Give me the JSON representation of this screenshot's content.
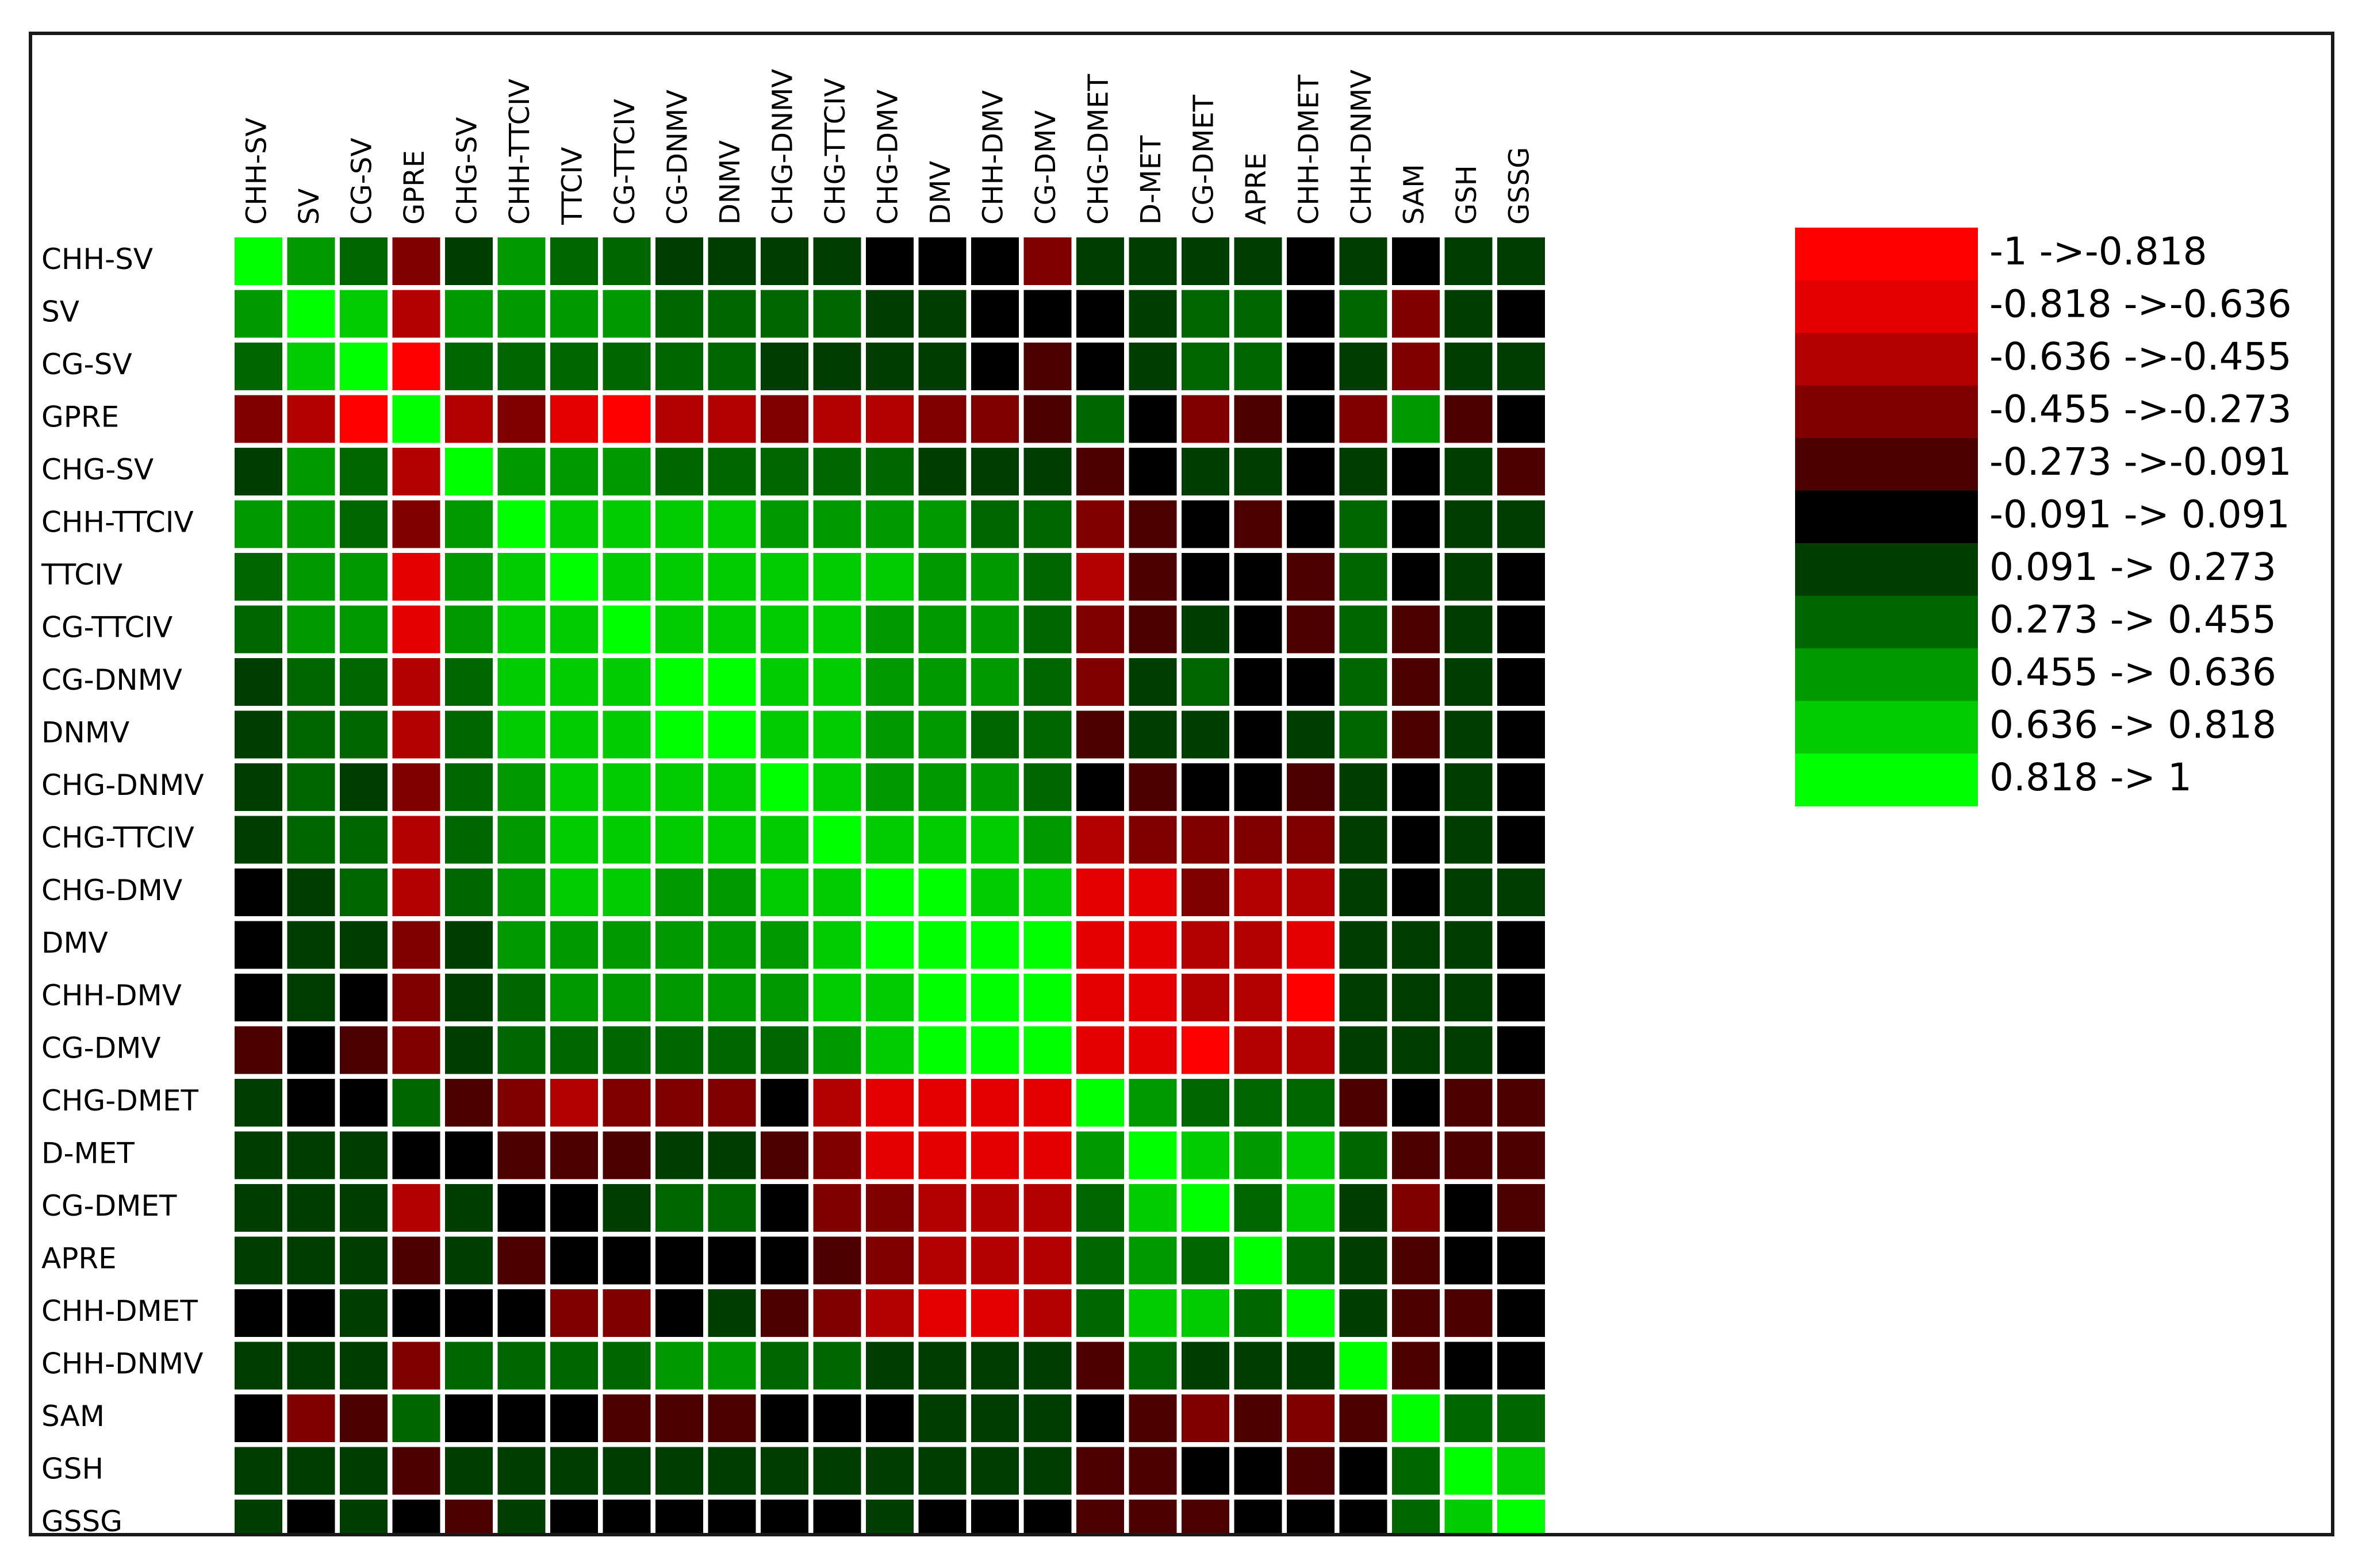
{
  "chart_data": {
    "type": "heatmap",
    "row_labels": [
      "CHH-SV",
      "SV",
      "CG-SV",
      "GPRE",
      "CHG-SV",
      "CHH-TTCIV",
      "TTCIV",
      "CG-TTCIV",
      "CG-DNMV",
      "DNMV",
      "CHG-DNMV",
      "CHG-TTCIV",
      "CHG-DMV",
      "DMV",
      "CHH-DMV",
      "CG-DMV",
      "CHG-DMET",
      "D-MET",
      "CG-DMET",
      "APRE",
      "CHH-DMET",
      "CHH-DNMV",
      "SAM",
      "GSH",
      "GSSG"
    ],
    "col_labels": [
      "CHH-SV",
      "SV",
      "CG-SV",
      "GPRE",
      "CHG-SV",
      "CHH-TTCIV",
      "TTCIV",
      "CG-TTCIV",
      "CG-DNMV",
      "DNMV",
      "CHG-DNMV",
      "CHG-TTCIV",
      "CHG-DMV",
      "DMV",
      "CHH-DMV",
      "CG-DMV",
      "CHG-DMET",
      "D-MET",
      "CG-DMET",
      "APRE",
      "CHH-DMET",
      "CHH-DNMV",
      "SAM",
      "GSH",
      "GSSG"
    ],
    "values": [
      [
        10,
        8,
        7,
        3,
        6,
        8,
        7,
        7,
        6,
        6,
        6,
        6,
        5,
        5,
        5,
        3,
        6,
        6,
        6,
        6,
        5,
        6,
        5,
        6,
        6
      ],
      [
        8,
        10,
        9,
        2,
        8,
        8,
        8,
        8,
        7,
        7,
        7,
        7,
        6,
        6,
        5,
        5,
        5,
        6,
        7,
        7,
        5,
        7,
        3,
        6,
        5
      ],
      [
        7,
        9,
        10,
        0,
        7,
        7,
        7,
        7,
        7,
        7,
        6,
        6,
        6,
        6,
        5,
        4,
        5,
        6,
        7,
        7,
        5,
        6,
        3,
        6,
        6
      ],
      [
        3,
        2,
        0,
        10,
        2,
        3,
        1,
        0,
        2,
        2,
        3,
        2,
        2,
        3,
        3,
        4,
        7,
        5,
        3,
        4,
        5,
        3,
        8,
        4,
        5
      ],
      [
        6,
        8,
        7,
        2,
        10,
        8,
        8,
        8,
        7,
        7,
        7,
        7,
        7,
        6,
        6,
        6,
        4,
        5,
        6,
        6,
        5,
        6,
        5,
        6,
        4
      ],
      [
        8,
        8,
        7,
        3,
        8,
        10,
        9,
        9,
        9,
        9,
        8,
        8,
        8,
        8,
        7,
        7,
        3,
        4,
        5,
        4,
        5,
        7,
        5,
        6,
        6
      ],
      [
        7,
        8,
        8,
        1,
        8,
        9,
        10,
        9,
        9,
        9,
        9,
        9,
        9,
        8,
        8,
        7,
        2,
        4,
        5,
        5,
        4,
        7,
        5,
        6,
        5
      ],
      [
        7,
        8,
        8,
        1,
        8,
        9,
        9,
        10,
        9,
        9,
        9,
        9,
        8,
        8,
        8,
        7,
        3,
        4,
        6,
        5,
        4,
        7,
        4,
        6,
        5
      ],
      [
        6,
        7,
        7,
        2,
        7,
        9,
        9,
        9,
        10,
        10,
        9,
        9,
        8,
        8,
        8,
        7,
        3,
        6,
        7,
        5,
        5,
        7,
        4,
        6,
        5
      ],
      [
        6,
        7,
        7,
        2,
        7,
        9,
        9,
        9,
        10,
        10,
        9,
        9,
        8,
        8,
        7,
        7,
        4,
        6,
        6,
        5,
        6,
        7,
        4,
        6,
        5
      ],
      [
        6,
        7,
        6,
        3,
        7,
        8,
        9,
        9,
        9,
        9,
        10,
        9,
        8,
        8,
        8,
        7,
        5,
        4,
        5,
        5,
        4,
        6,
        5,
        6,
        5
      ],
      [
        6,
        7,
        7,
        2,
        7,
        8,
        9,
        9,
        9,
        9,
        9,
        10,
        9,
        9,
        9,
        8,
        2,
        3,
        3,
        3,
        3,
        6,
        5,
        6,
        5
      ],
      [
        5,
        6,
        7,
        2,
        7,
        8,
        9,
        9,
        8,
        8,
        9,
        9,
        10,
        10,
        9,
        9,
        1,
        1,
        3,
        2,
        2,
        6,
        5,
        6,
        6
      ],
      [
        5,
        6,
        6,
        3,
        6,
        8,
        8,
        8,
        8,
        8,
        8,
        9,
        10,
        10,
        10,
        10,
        1,
        1,
        2,
        2,
        1,
        6,
        6,
        6,
        5
      ],
      [
        5,
        6,
        5,
        3,
        6,
        7,
        8,
        8,
        8,
        8,
        8,
        9,
        9,
        10,
        10,
        10,
        1,
        1,
        2,
        2,
        0,
        6,
        6,
        6,
        5
      ],
      [
        4,
        5,
        4,
        3,
        6,
        7,
        7,
        7,
        7,
        7,
        7,
        8,
        9,
        10,
        10,
        10,
        1,
        1,
        0,
        2,
        2,
        6,
        6,
        6,
        5
      ],
      [
        6,
        5,
        5,
        7,
        4,
        3,
        2,
        3,
        3,
        3,
        5,
        2,
        1,
        1,
        1,
        1,
        10,
        8,
        7,
        7,
        7,
        4,
        5,
        4,
        4
      ],
      [
        6,
        6,
        6,
        5,
        5,
        4,
        4,
        4,
        6,
        6,
        4,
        3,
        1,
        1,
        1,
        1,
        8,
        10,
        9,
        8,
        9,
        7,
        4,
        4,
        4
      ],
      [
        6,
        6,
        6,
        2,
        6,
        5,
        5,
        6,
        7,
        7,
        5,
        3,
        3,
        2,
        2,
        2,
        7,
        9,
        10,
        7,
        9,
        6,
        3,
        5,
        4
      ],
      [
        6,
        6,
        6,
        4,
        6,
        4,
        5,
        5,
        5,
        5,
        5,
        4,
        3,
        2,
        2,
        2,
        7,
        8,
        7,
        10,
        7,
        6,
        4,
        5,
        5
      ],
      [
        5,
        5,
        6,
        5,
        5,
        5,
        3,
        3,
        5,
        6,
        4,
        3,
        2,
        1,
        1,
        2,
        7,
        9,
        9,
        7,
        10,
        6,
        4,
        4,
        5
      ],
      [
        6,
        6,
        6,
        3,
        7,
        7,
        7,
        7,
        8,
        8,
        7,
        7,
        6,
        6,
        6,
        6,
        4,
        7,
        6,
        6,
        6,
        10,
        4,
        5,
        5
      ],
      [
        5,
        3,
        4,
        7,
        5,
        5,
        5,
        4,
        4,
        4,
        5,
        5,
        5,
        6,
        6,
        6,
        5,
        4,
        3,
        4,
        3,
        4,
        10,
        7,
        7
      ],
      [
        6,
        6,
        6,
        4,
        6,
        6,
        6,
        6,
        6,
        6,
        6,
        6,
        6,
        6,
        6,
        6,
        4,
        4,
        5,
        5,
        4,
        5,
        7,
        10,
        9
      ],
      [
        6,
        5,
        6,
        5,
        4,
        6,
        5,
        5,
        5,
        5,
        5,
        5,
        6,
        5,
        5,
        5,
        4,
        4,
        4,
        5,
        5,
        5,
        7,
        9,
        10
      ]
    ],
    "legend": {
      "position": "top-right",
      "colors": [
        "#ff0000",
        "#e50000",
        "#b30000",
        "#800000",
        "#4d0000",
        "#000000",
        "#003d00",
        "#006600",
        "#009900",
        "#00cc00",
        "#00ff00"
      ],
      "labels": [
        "-1 ->-0.818",
        "-0.818 ->-0.636",
        "-0.636 ->-0.455",
        "-0.455 ->-0.273",
        "-0.273 ->-0.091",
        "-0.091 -> 0.091",
        "0.091 -> 0.273",
        "0.273 -> 0.455",
        "0.455 -> 0.636",
        "0.636 -> 0.818",
        "0.818 -> 1"
      ]
    }
  }
}
